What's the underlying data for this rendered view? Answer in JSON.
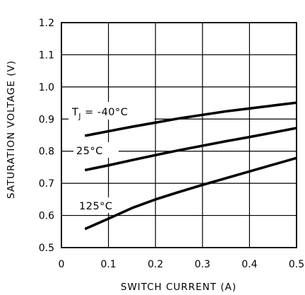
{
  "chart_data": {
    "type": "line",
    "title": "",
    "xlabel": "SWITCH CURRENT (A)",
    "ylabel": "SATURATION VOLTAGE (V)",
    "xlim": [
      0,
      0.5
    ],
    "ylim": [
      0.5,
      1.2
    ],
    "x_ticks": [
      0,
      0.1,
      0.2,
      0.3,
      0.4,
      0.5
    ],
    "x_tick_labels": [
      "0",
      "0.1",
      "0.2",
      "0.3",
      "0.4",
      "0.5"
    ],
    "y_ticks": [
      0.5,
      0.6,
      0.7,
      0.8,
      0.9,
      1.0,
      1.1,
      1.2
    ],
    "y_tick_labels": [
      "0.5",
      "0.6",
      "0.7",
      "0.8",
      "0.9",
      "1.0",
      "1.1",
      "1.2"
    ],
    "grid": true,
    "series": [
      {
        "label_parts": [
          "T",
          "J",
          " = -40°C"
        ],
        "x": [
          0.05,
          0.1,
          0.15,
          0.2,
          0.25,
          0.3,
          0.35,
          0.4,
          0.45,
          0.5
        ],
        "y": [
          0.848,
          0.862,
          0.876,
          0.889,
          0.902,
          0.913,
          0.924,
          0.933,
          0.942,
          0.951
        ]
      },
      {
        "label_parts": [
          "25°C"
        ],
        "x": [
          0.05,
          0.1,
          0.15,
          0.2,
          0.25,
          0.3,
          0.35,
          0.4,
          0.45,
          0.5
        ],
        "y": [
          0.741,
          0.756,
          0.772,
          0.788,
          0.803,
          0.817,
          0.831,
          0.844,
          0.858,
          0.872
        ]
      },
      {
        "label_parts": [
          "125°C"
        ],
        "x": [
          0.05,
          0.1,
          0.15,
          0.2,
          0.25,
          0.3,
          0.35,
          0.4,
          0.45,
          0.5
        ],
        "y": [
          0.558,
          0.59,
          0.623,
          0.65,
          0.673,
          0.695,
          0.716,
          0.737,
          0.758,
          0.779
        ]
      }
    ]
  }
}
